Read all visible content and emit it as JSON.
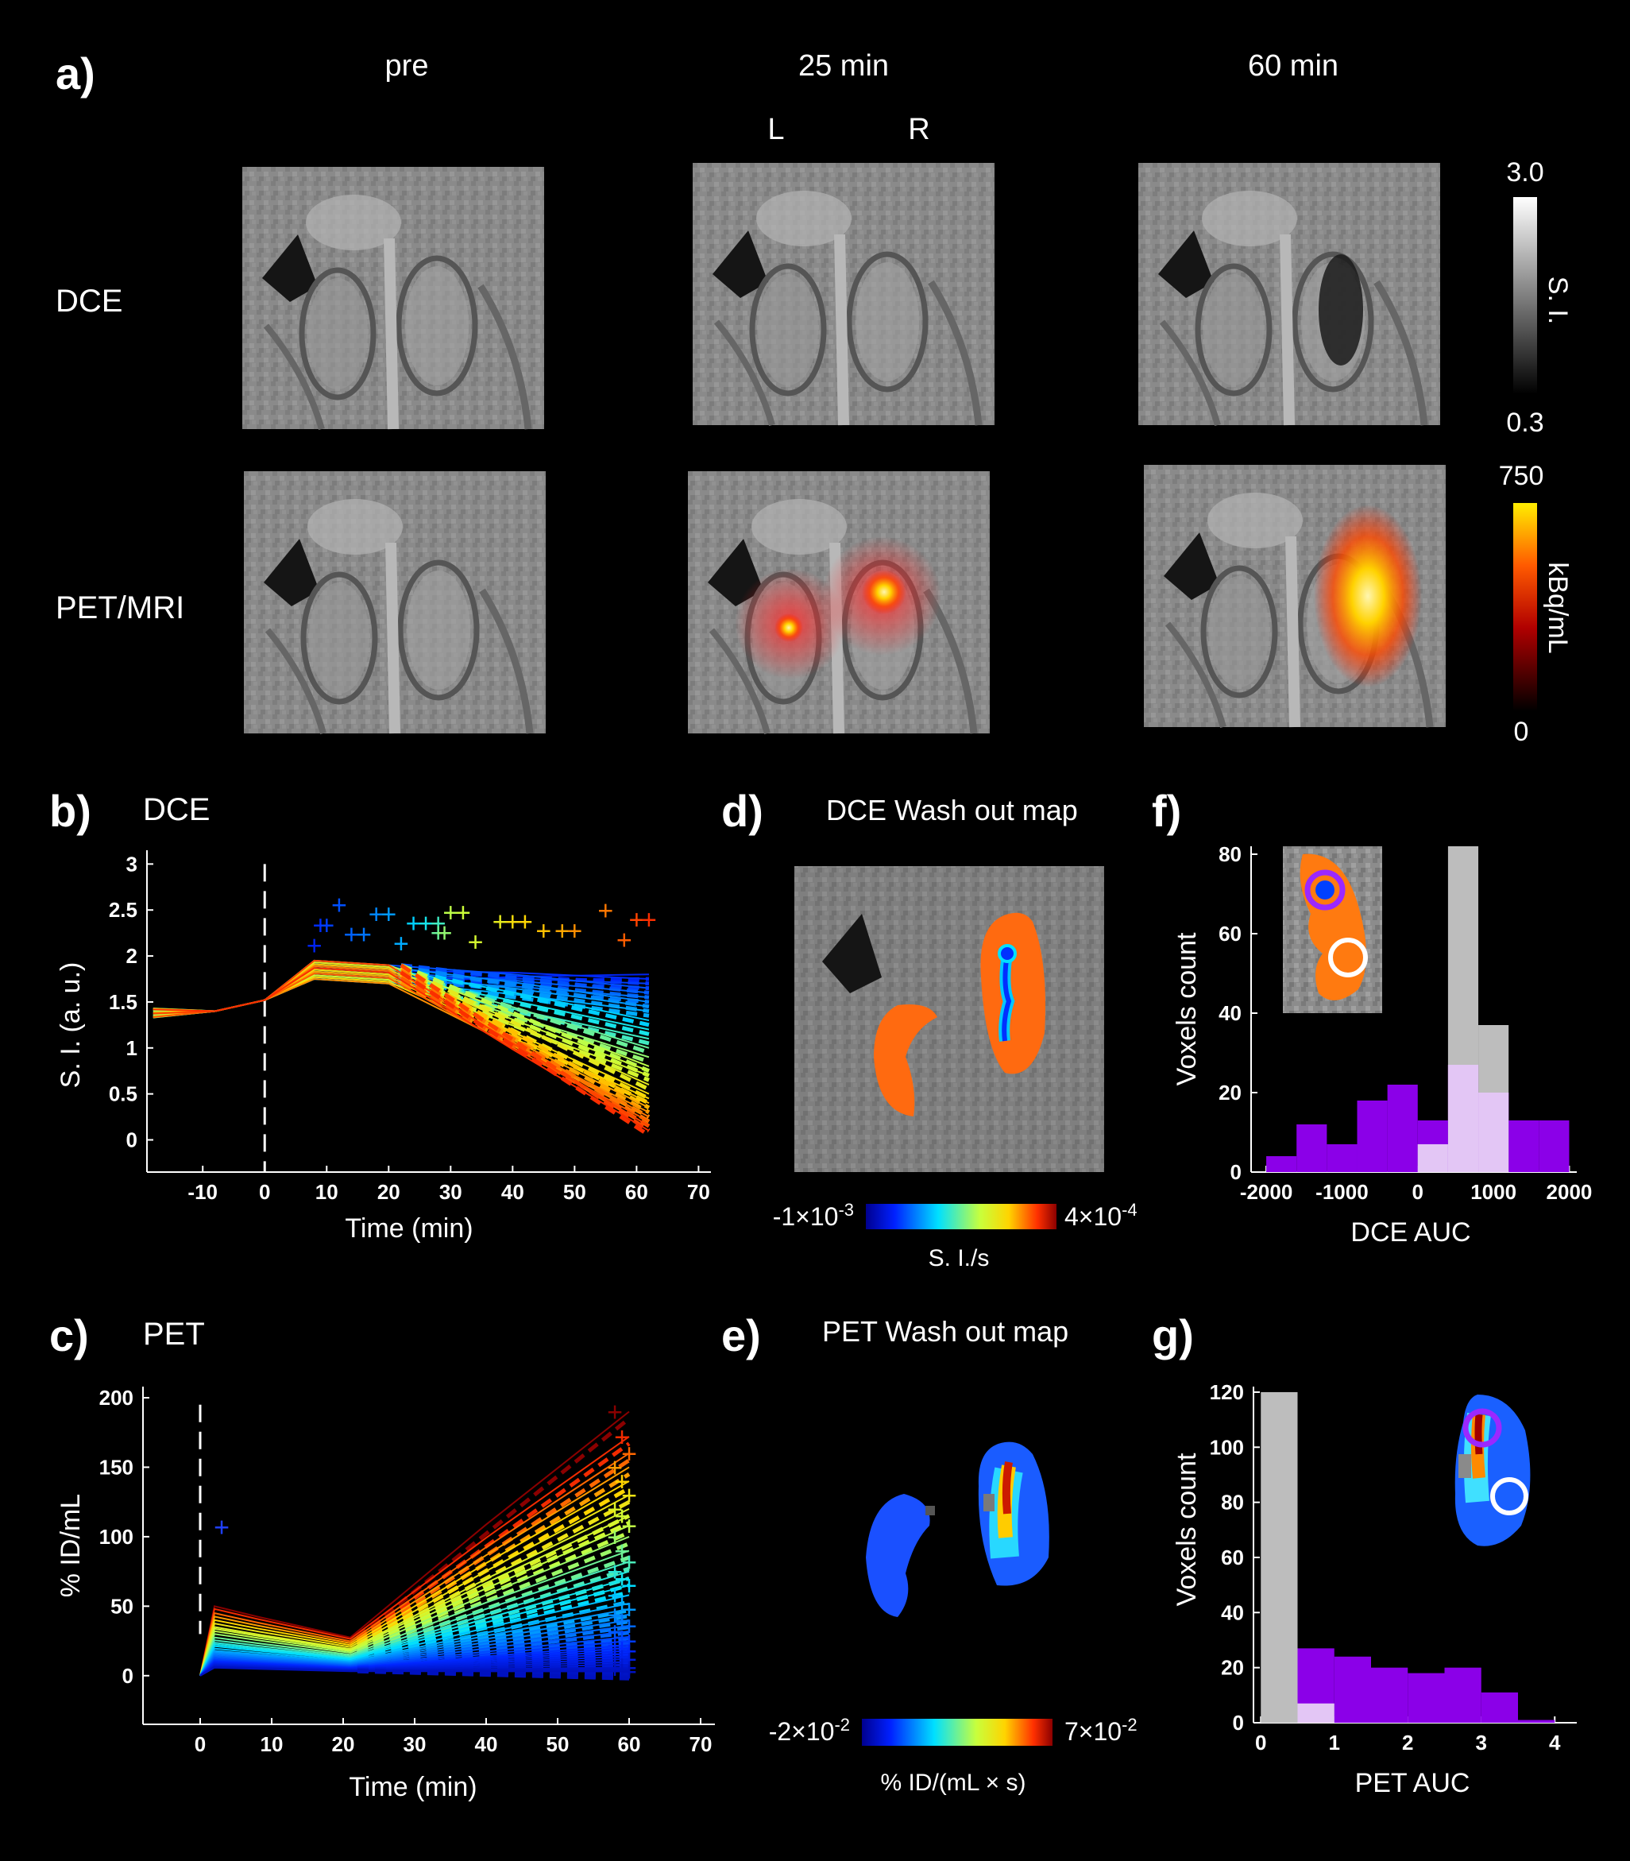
{
  "panel_a": {
    "label": "a)",
    "columns": [
      "pre",
      "25 min",
      "60 min"
    ],
    "orientation": {
      "left": "L",
      "right": "R"
    },
    "rows": [
      "DCE",
      "PET/MRI"
    ],
    "si_colorbar": {
      "max": "3.0",
      "min": "0.3",
      "label": "S. I."
    },
    "pet_colorbar": {
      "max": "750",
      "min": "0",
      "label": "kBq/mL"
    }
  },
  "panel_b": {
    "label": "b)",
    "title": "DCE",
    "xlabel": "Time (min)",
    "ylabel": "S. I. (a. u.)",
    "xticks": [
      "-10",
      "0",
      "10",
      "20",
      "30",
      "40",
      "50",
      "60",
      "70"
    ],
    "yticks": [
      "0",
      "0.5",
      "1",
      "1.5",
      "2",
      "2.5",
      "3"
    ]
  },
  "panel_c": {
    "label": "c)",
    "title": "PET",
    "xlabel": "Time (min)",
    "ylabel": "% ID/mL",
    "xticks": [
      "0",
      "10",
      "20",
      "30",
      "40",
      "50",
      "60",
      "70"
    ],
    "yticks": [
      "0",
      "50",
      "100",
      "150",
      "200"
    ]
  },
  "panel_d": {
    "label": "d)",
    "title": "DCE Wash out map",
    "cb_min": "-1×10",
    "cb_min_exp": "-3",
    "cb_max": "4×10",
    "cb_max_exp": "-4",
    "cb_label": "S. I./s"
  },
  "panel_e": {
    "label": "e)",
    "title": "PET Wash out map",
    "cb_min": "-2×10",
    "cb_min_exp": "-2",
    "cb_max": "7×10",
    "cb_max_exp": "-2",
    "cb_label": "% ID/(mL × s)"
  },
  "panel_f": {
    "label": "f)",
    "xlabel": "DCE AUC",
    "ylabel": "Voxels count",
    "xticks": [
      "-2000",
      "-1000",
      "0",
      "1000",
      "2000"
    ],
    "yticks": [
      "0",
      "20",
      "40",
      "60",
      "80"
    ]
  },
  "panel_g": {
    "label": "g)",
    "xlabel": "PET AUC",
    "ylabel": "Voxels count",
    "xticks": [
      "0",
      "1",
      "2",
      "3",
      "4"
    ],
    "yticks": [
      "0",
      "20",
      "40",
      "60",
      "80",
      "100",
      "120"
    ]
  },
  "colors": {
    "purple": "#8b00e8",
    "gray": "#bdbdbd",
    "light_purple": "#e3c6f5",
    "dce_orange": "#ff7a10",
    "pet_blue": "#1e5cff"
  },
  "chart_data": [
    {
      "id": "f",
      "type": "bar",
      "xlabel": "DCE AUC",
      "ylabel": "Voxels count",
      "xlim": [
        -2200,
        2100
      ],
      "ylim": [
        0,
        82
      ],
      "bin_edges": [
        -2000,
        -1600,
        -1200,
        -800,
        -400,
        0,
        400,
        800,
        1200,
        1600,
        2000
      ],
      "series": [
        {
          "values": [
            4,
            12,
            7,
            18,
            22,
            13,
            27,
            20,
            13,
            13
          ]
        },
        {
          "values": [
            0,
            0,
            0,
            0,
            0,
            7,
            82,
            37,
            0,
            0
          ]
        }
      ]
    },
    {
      "id": "g",
      "type": "bar",
      "xlabel": "PET AUC",
      "ylabel": "Voxels count",
      "xlim": [
        -0.1,
        4.3
      ],
      "ylim": [
        0,
        122
      ],
      "bin_edges": [
        0,
        0.5,
        1,
        1.5,
        2,
        2.5,
        3,
        3.5,
        4
      ],
      "series": [
        {
          "values": [
            0,
            27,
            24,
            20,
            18,
            20,
            11,
            1
          ]
        },
        {
          "values": [
            120,
            7,
            0,
            0,
            0,
            0,
            0,
            0
          ]
        }
      ]
    },
    {
      "id": "b",
      "type": "line",
      "xlabel": "Time (min)",
      "ylabel": "S. I. (a. u.)",
      "xlim": [
        -19,
        72
      ],
      "ylim": [
        -0.35,
        3.15
      ],
      "baseline_x": [
        -18,
        -10,
        -5,
        0
      ],
      "baseline_y": [
        1.38,
        1.4,
        1.43,
        1.5
      ],
      "peak_x": [
        8,
        9,
        10,
        12,
        14,
        16,
        18,
        20,
        22,
        24,
        26,
        28,
        28,
        29,
        30,
        32,
        34,
        38,
        40,
        42,
        45,
        48,
        50,
        55,
        58,
        60,
        62
      ],
      "end_values": [
        1.8,
        1.75,
        1.7,
        1.65,
        1.6,
        1.55,
        1.5,
        1.45,
        1.4,
        1.3,
        1.2,
        1.1,
        1.0,
        0.9,
        0.8,
        0.75,
        0.7,
        0.6,
        0.5,
        0.45,
        0.4,
        0.35,
        0.3,
        0.25,
        0.2,
        0.15,
        0.1
      ]
    },
    {
      "id": "c",
      "type": "line",
      "xlabel": "Time (min)",
      "ylabel": "% ID/mL",
      "xlim": [
        -8,
        72
      ],
      "ylim": [
        -35,
        208
      ],
      "end_values": [
        190,
        172,
        160,
        150,
        140,
        130,
        120,
        115,
        108,
        100,
        90,
        82,
        75,
        70,
        65,
        58,
        52,
        48,
        44,
        40,
        36,
        32,
        28,
        25,
        22,
        20,
        18,
        16,
        14,
        12,
        10,
        8,
        6,
        5,
        4,
        3
      ]
    }
  ]
}
